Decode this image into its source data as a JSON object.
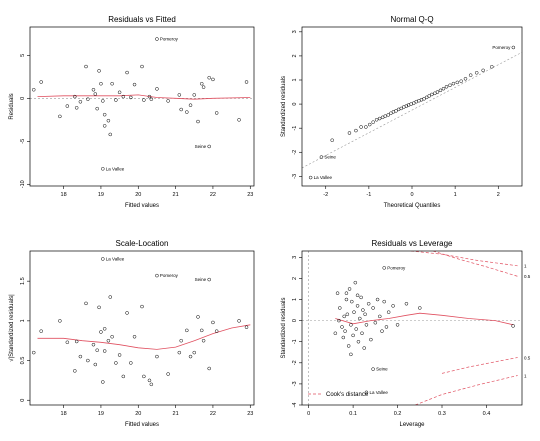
{
  "colors": {
    "point": "#000000",
    "smooth": "#e05060",
    "reference": "#999999",
    "cook": "#e05060",
    "frame": "#000000"
  },
  "chart_data": [
    {
      "id": "rvf",
      "type": "scatter",
      "title": "Residuals vs Fitted",
      "xlabel": "Fitted values",
      "ylabel": "Residuals",
      "xlim": [
        17.1,
        23.1
      ],
      "ylim": [
        -10.2,
        8.3
      ],
      "xticks": [
        18,
        19,
        20,
        21,
        22,
        23
      ],
      "yticks": [
        -10,
        -5,
        0,
        5
      ],
      "points": [
        [
          17.2,
          1.0
        ],
        [
          17.4,
          1.9
        ],
        [
          17.9,
          -2.1
        ],
        [
          18.1,
          -0.9
        ],
        [
          18.3,
          0.2
        ],
        [
          18.35,
          -1.1
        ],
        [
          18.45,
          -0.4
        ],
        [
          18.6,
          3.7
        ],
        [
          18.65,
          -0.1
        ],
        [
          18.8,
          1.0
        ],
        [
          18.85,
          0.5
        ],
        [
          18.9,
          -1.2
        ],
        [
          18.95,
          3.2
        ],
        [
          19.0,
          1.7
        ],
        [
          19.05,
          -0.3
        ],
        [
          19.1,
          -1.9
        ],
        [
          19.2,
          -2.6
        ],
        [
          19.25,
          -4.2
        ],
        [
          19.3,
          1.7
        ],
        [
          19.4,
          -0.2
        ],
        [
          19.5,
          0.7
        ],
        [
          19.6,
          0.2
        ],
        [
          19.7,
          3.0
        ],
        [
          19.8,
          0.1
        ],
        [
          19.9,
          1.6
        ],
        [
          20.1,
          3.7
        ],
        [
          20.15,
          -0.2
        ],
        [
          20.3,
          0.2
        ],
        [
          20.35,
          -0.1
        ],
        [
          20.8,
          -0.3
        ],
        [
          21.1,
          0.4
        ],
        [
          21.15,
          -1.3
        ],
        [
          21.3,
          -1.6
        ],
        [
          21.4,
          -0.8
        ],
        [
          21.5,
          0.4
        ],
        [
          21.6,
          -2.7
        ],
        [
          21.7,
          1.7
        ],
        [
          21.75,
          1.3
        ],
        [
          21.9,
          2.4
        ],
        [
          22.0,
          2.2
        ],
        [
          22.1,
          -1.7
        ],
        [
          22.7,
          -2.5
        ],
        [
          22.9,
          1.9
        ],
        [
          19.1,
          -3.2
        ],
        [
          20.5,
          1.1
        ]
      ],
      "labeled_points": [
        {
          "label": "Pomeroy",
          "x": 20.5,
          "y": 6.9
        },
        {
          "label": "Seine",
          "x": 21.9,
          "y": -5.6
        },
        {
          "label": "La Vallee",
          "x": 19.05,
          "y": -8.2
        }
      ],
      "smooth": [
        [
          17.3,
          0.2
        ],
        [
          18.0,
          0.3
        ],
        [
          19.0,
          0.3
        ],
        [
          19.5,
          0.3
        ],
        [
          20.0,
          0.4
        ],
        [
          20.5,
          0.1
        ],
        [
          21.0,
          0.0
        ],
        [
          21.5,
          -0.1
        ],
        [
          22.0,
          0.0
        ],
        [
          23.0,
          0.1
        ]
      ],
      "reference_h": 0
    },
    {
      "id": "qq",
      "type": "scatter",
      "title": "Normal Q-Q",
      "xlabel": "Theoretical Quantiles",
      "ylabel": "Standardized residuals",
      "xlim": [
        -2.55,
        2.55
      ],
      "ylim": [
        -3.4,
        3.2
      ],
      "xticks": [
        -2,
        -1,
        0,
        1,
        2
      ],
      "yticks": [
        -3,
        -2,
        -1,
        0,
        1,
        2,
        3
      ],
      "points": [
        [
          -1.45,
          -1.2
        ],
        [
          -1.3,
          -1.1
        ],
        [
          -1.18,
          -0.95
        ],
        [
          -1.07,
          -0.95
        ],
        [
          -0.98,
          -0.85
        ],
        [
          -0.9,
          -0.75
        ],
        [
          -0.82,
          -0.65
        ],
        [
          -0.75,
          -0.6
        ],
        [
          -0.68,
          -0.55
        ],
        [
          -0.62,
          -0.5
        ],
        [
          -0.55,
          -0.45
        ],
        [
          -0.49,
          -0.38
        ],
        [
          -0.43,
          -0.32
        ],
        [
          -0.37,
          -0.28
        ],
        [
          -0.31,
          -0.22
        ],
        [
          -0.25,
          -0.18
        ],
        [
          -0.19,
          -0.12
        ],
        [
          -0.13,
          -0.08
        ],
        [
          -0.08,
          -0.04
        ],
        [
          -0.02,
          0.0
        ],
        [
          0.04,
          0.04
        ],
        [
          0.1,
          0.1
        ],
        [
          0.16,
          0.14
        ],
        [
          0.22,
          0.18
        ],
        [
          0.28,
          0.22
        ],
        [
          0.34,
          0.28
        ],
        [
          0.4,
          0.34
        ],
        [
          0.46,
          0.4
        ],
        [
          0.53,
          0.45
        ],
        [
          0.59,
          0.5
        ],
        [
          0.66,
          0.57
        ],
        [
          0.73,
          0.64
        ],
        [
          0.8,
          0.72
        ],
        [
          0.88,
          0.78
        ],
        [
          0.96,
          0.85
        ],
        [
          1.05,
          0.9
        ],
        [
          1.14,
          0.95
        ],
        [
          1.24,
          1.05
        ],
        [
          1.36,
          1.2
        ],
        [
          1.5,
          1.3
        ],
        [
          1.65,
          1.4
        ],
        [
          1.85,
          1.55
        ],
        [
          -1.85,
          -1.5
        ]
      ],
      "labeled_points": [
        {
          "label": "Pomeroy",
          "x": 2.35,
          "y": 2.35
        },
        {
          "label": "Seine",
          "x": -2.1,
          "y": -2.2
        },
        {
          "label": "La Vallee",
          "x": -2.35,
          "y": -3.05
        }
      ],
      "reference_line": [
        [
          -2.55,
          -2.65
        ],
        [
          2.55,
          2.15
        ]
      ]
    },
    {
      "id": "sl",
      "type": "scatter",
      "title": "Scale-Location",
      "xlabel": "Fitted values",
      "ylabel": "√|Standardized residuals|",
      "xlim": [
        17.1,
        23.1
      ],
      "ylim": [
        -0.06,
        1.88
      ],
      "xticks": [
        18,
        19,
        20,
        21,
        22,
        23
      ],
      "yticks": [
        0.0,
        0.5,
        1.0,
        1.5
      ],
      "points": [
        [
          17.2,
          0.6
        ],
        [
          17.4,
          0.87
        ],
        [
          17.9,
          1.0
        ],
        [
          18.1,
          0.73
        ],
        [
          18.3,
          0.37
        ],
        [
          18.35,
          0.74
        ],
        [
          18.45,
          0.55
        ],
        [
          18.6,
          1.22
        ],
        [
          18.65,
          0.5
        ],
        [
          18.8,
          0.7
        ],
        [
          18.85,
          0.45
        ],
        [
          18.9,
          0.63
        ],
        [
          18.95,
          1.17
        ],
        [
          19.0,
          0.86
        ],
        [
          19.05,
          0.23
        ],
        [
          19.1,
          0.9
        ],
        [
          19.2,
          0.75
        ],
        [
          19.25,
          1.3
        ],
        [
          19.3,
          0.8
        ],
        [
          19.4,
          0.47
        ],
        [
          19.5,
          0.57
        ],
        [
          19.6,
          0.3
        ],
        [
          19.7,
          1.1
        ],
        [
          19.8,
          0.47
        ],
        [
          19.9,
          0.8
        ],
        [
          20.1,
          1.18
        ],
        [
          20.15,
          0.3
        ],
        [
          20.3,
          0.25
        ],
        [
          20.35,
          0.2
        ],
        [
          20.8,
          0.33
        ],
        [
          21.1,
          0.6
        ],
        [
          21.15,
          0.75
        ],
        [
          21.3,
          0.88
        ],
        [
          21.4,
          0.55
        ],
        [
          21.5,
          0.6
        ],
        [
          21.6,
          1.05
        ],
        [
          21.7,
          0.88
        ],
        [
          21.75,
          0.75
        ],
        [
          21.9,
          0.4
        ],
        [
          22.0,
          0.98
        ],
        [
          22.1,
          0.87
        ],
        [
          22.7,
          1.0
        ],
        [
          22.9,
          0.92
        ],
        [
          19.1,
          0.62
        ],
        [
          20.5,
          0.55
        ]
      ],
      "labeled_points": [
        {
          "label": "La Vallee",
          "x": 19.05,
          "y": 1.78
        },
        {
          "label": "Pomeroy",
          "x": 20.5,
          "y": 1.57
        },
        {
          "label": "Seine",
          "x": 21.9,
          "y": 1.52
        }
      ],
      "smooth": [
        [
          17.3,
          0.78
        ],
        [
          18.0,
          0.78
        ],
        [
          18.5,
          0.75
        ],
        [
          19.0,
          0.73
        ],
        [
          19.5,
          0.7
        ],
        [
          20.0,
          0.66
        ],
        [
          20.5,
          0.64
        ],
        [
          21.0,
          0.67
        ],
        [
          21.5,
          0.75
        ],
        [
          22.0,
          0.84
        ],
        [
          22.5,
          0.91
        ],
        [
          23.0,
          0.95
        ]
      ]
    },
    {
      "id": "rvl",
      "type": "scatter",
      "title": "Residuals vs Leverage",
      "xlabel": "Leverage",
      "ylabel": "Standardized residuals",
      "xlim": [
        -0.015,
        0.48
      ],
      "ylim": [
        -4.0,
        3.3
      ],
      "xticks": [
        0.0,
        0.1,
        0.2,
        0.3,
        0.4
      ],
      "yticks": [
        -4,
        -3,
        -2,
        -1,
        0,
        1,
        2,
        3
      ],
      "points": [
        [
          0.065,
          1.3
        ],
        [
          0.07,
          0.6
        ],
        [
          0.075,
          -0.3
        ],
        [
          0.078,
          -0.8
        ],
        [
          0.08,
          0.2
        ],
        [
          0.082,
          -0.5
        ],
        [
          0.085,
          1.0
        ],
        [
          0.087,
          0.3
        ],
        [
          0.09,
          -1.2
        ],
        [
          0.092,
          1.5
        ],
        [
          0.095,
          -0.2
        ],
        [
          0.097,
          0.9
        ],
        [
          0.1,
          -0.7
        ],
        [
          0.102,
          0.4
        ],
        [
          0.105,
          1.8
        ],
        [
          0.107,
          -0.4
        ],
        [
          0.11,
          0.7
        ],
        [
          0.112,
          -1.0
        ],
        [
          0.115,
          0.1
        ],
        [
          0.118,
          1.1
        ],
        [
          0.12,
          -0.6
        ],
        [
          0.122,
          0.5
        ],
        [
          0.125,
          -1.3
        ],
        [
          0.127,
          0.3
        ],
        [
          0.13,
          -0.2
        ],
        [
          0.135,
          0.8
        ],
        [
          0.14,
          -0.9
        ],
        [
          0.145,
          0.6
        ],
        [
          0.15,
          -0.1
        ],
        [
          0.155,
          1.0
        ],
        [
          0.16,
          0.2
        ],
        [
          0.165,
          -0.5
        ],
        [
          0.17,
          0.9
        ],
        [
          0.175,
          -0.3
        ],
        [
          0.18,
          0.4
        ],
        [
          0.19,
          0.7
        ],
        [
          0.2,
          -0.2
        ],
        [
          0.22,
          0.8
        ],
        [
          0.25,
          0.6
        ],
        [
          0.46,
          -0.25
        ],
        [
          0.06,
          -0.6
        ],
        [
          0.068,
          0.0
        ],
        [
          0.085,
          1.3
        ],
        [
          0.095,
          -1.6
        ],
        [
          0.11,
          1.2
        ]
      ],
      "labeled_points": [
        {
          "label": "Pomeroy",
          "x": 0.17,
          "y": 2.5
        },
        {
          "label": "Seine",
          "x": 0.145,
          "y": -2.3
        },
        {
          "label": "La Vallee",
          "x": 0.13,
          "y": -3.4
        }
      ],
      "smooth": [
        [
          0.06,
          0.1
        ],
        [
          0.1,
          -0.15
        ],
        [
          0.14,
          0.0
        ],
        [
          0.18,
          0.1
        ],
        [
          0.22,
          0.25
        ],
        [
          0.25,
          0.35
        ],
        [
          0.3,
          0.25
        ],
        [
          0.36,
          0.1
        ],
        [
          0.42,
          0.0
        ],
        [
          0.46,
          -0.2
        ]
      ],
      "cook_contours": [
        {
          "label": "1",
          "points": [
            [
              0.23,
              3.3
            ],
            [
              0.3,
              3.15
            ],
            [
              0.38,
              2.85
            ],
            [
              0.47,
              2.6
            ]
          ]
        },
        {
          "label": "0.5",
          "points": [
            [
              0.28,
              3.3
            ],
            [
              0.34,
              2.9
            ],
            [
              0.4,
              2.55
            ],
            [
              0.47,
              2.1
            ]
          ]
        },
        {
          "label": "0.5",
          "points": [
            [
              0.3,
              -2.5
            ],
            [
              0.36,
              -2.2
            ],
            [
              0.42,
              -1.95
            ],
            [
              0.47,
              -1.75
            ]
          ]
        },
        {
          "label": "1",
          "points": [
            [
              0.24,
              -4.0
            ],
            [
              0.3,
              -3.5
            ],
            [
              0.38,
              -3.05
            ],
            [
              0.47,
              -2.6
            ]
          ]
        }
      ],
      "legend": {
        "label": "Cook's distance",
        "placement": "bottom-left"
      }
    }
  ]
}
